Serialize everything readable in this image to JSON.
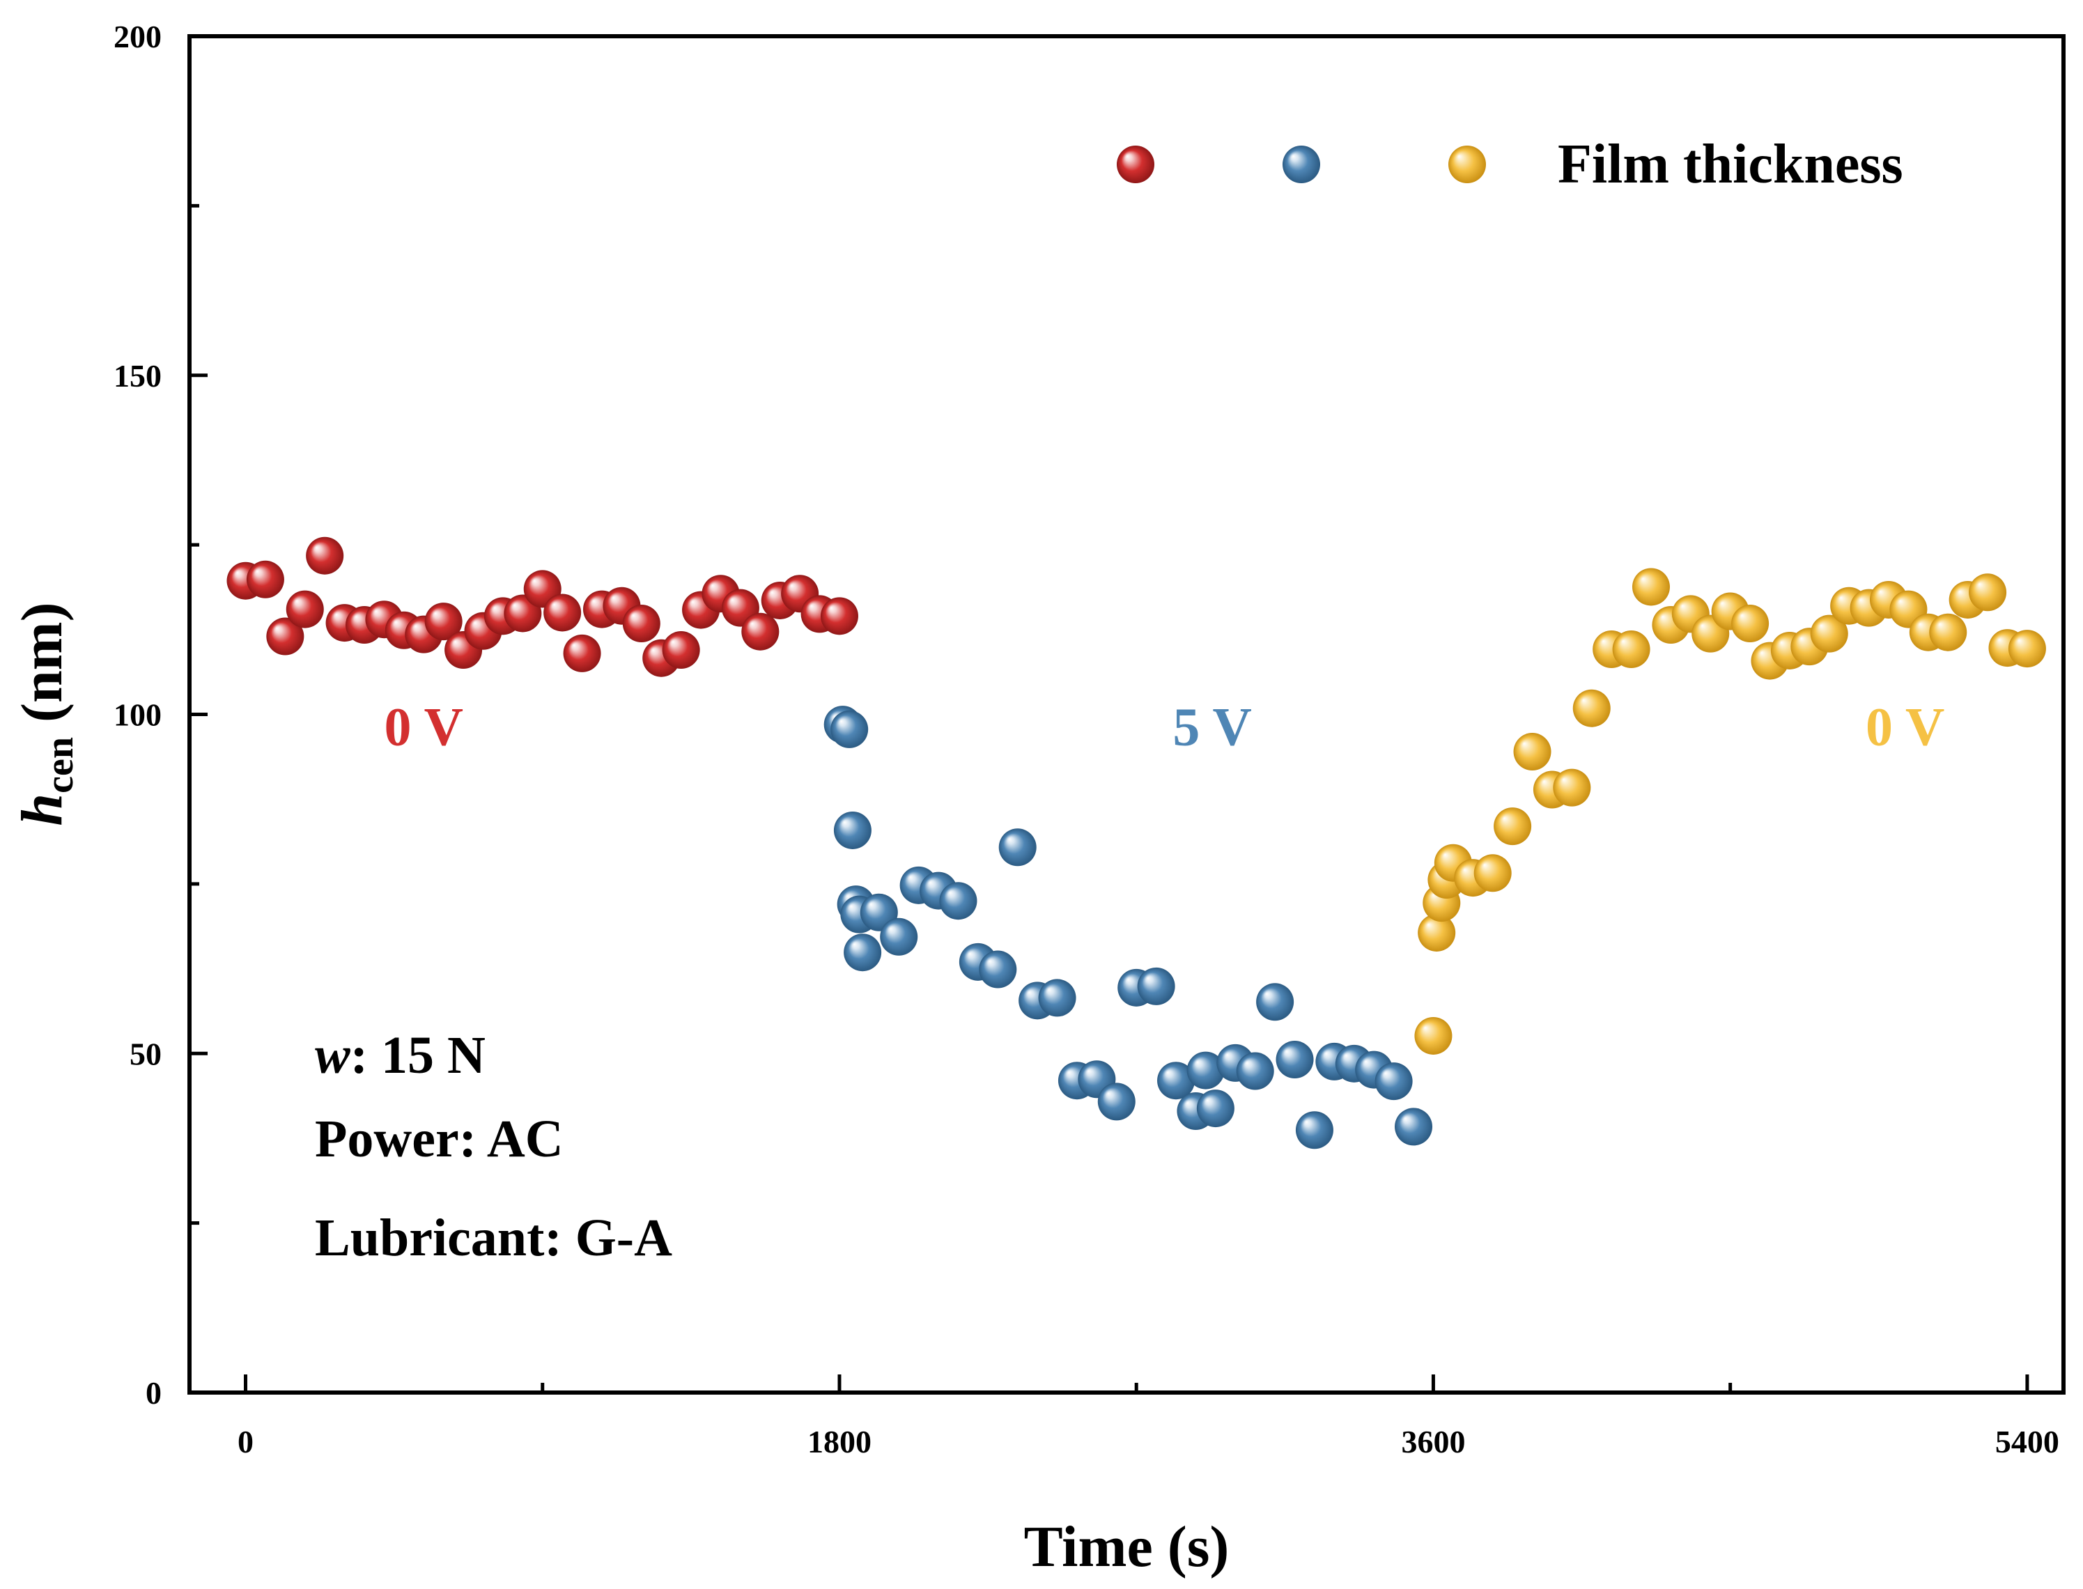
{
  "chart_data": {
    "type": "scatter",
    "title": "",
    "xlabel": "Time (s)",
    "ylabel": {
      "main": "h",
      "sub": "cen",
      "unit": " (nm)"
    },
    "xlim": [
      -170,
      5510
    ],
    "ylim": [
      0,
      200
    ],
    "x_ticks": [
      0,
      1800,
      3600,
      5400
    ],
    "x_tick_labels": [
      "0",
      "1800",
      "3600",
      "5400"
    ],
    "x_minor_ticks": [
      900,
      2700,
      4500
    ],
    "y_ticks": [
      0,
      50,
      100,
      150,
      200
    ],
    "y_tick_labels": [
      "0",
      "50",
      "100",
      "150",
      "200"
    ],
    "y_minor_ticks": [
      25,
      75,
      125,
      175
    ],
    "grid": false,
    "legend": {
      "position": "top-right",
      "label": "Film thickness"
    },
    "series": [
      {
        "name": "0 V",
        "color": "#d32f2f",
        "points": [
          [
            0,
            119.7
          ],
          [
            60,
            119.9
          ],
          [
            120,
            111.5
          ],
          [
            180,
            115.5
          ],
          [
            240,
            123.4
          ],
          [
            300,
            113.5
          ],
          [
            360,
            113.2
          ],
          [
            420,
            114.0
          ],
          [
            480,
            112.4
          ],
          [
            540,
            111.8
          ],
          [
            600,
            113.7
          ],
          [
            660,
            109.5
          ],
          [
            720,
            112.3
          ],
          [
            780,
            114.5
          ],
          [
            840,
            114.9
          ],
          [
            900,
            118.5
          ],
          [
            960,
            115.0
          ],
          [
            1020,
            109.0
          ],
          [
            1080,
            115.5
          ],
          [
            1140,
            116.0
          ],
          [
            1200,
            113.4
          ],
          [
            1260,
            108.3
          ],
          [
            1320,
            109.5
          ],
          [
            1380,
            115.4
          ],
          [
            1440,
            117.8
          ],
          [
            1500,
            115.7
          ],
          [
            1560,
            112.2
          ],
          [
            1620,
            116.8
          ],
          [
            1680,
            117.8
          ],
          [
            1740,
            114.8
          ],
          [
            1800,
            114.5
          ]
        ]
      },
      {
        "name": "5 V",
        "color": "#4f86b5",
        "points": [
          [
            1810,
            98.5
          ],
          [
            1830,
            97.8
          ],
          [
            1840,
            82.9
          ],
          [
            1850,
            72.0
          ],
          [
            1860,
            70.5
          ],
          [
            1870,
            64.9
          ],
          [
            1920,
            70.8
          ],
          [
            1980,
            67.2
          ],
          [
            2040,
            74.8
          ],
          [
            2100,
            74.0
          ],
          [
            2160,
            72.5
          ],
          [
            2220,
            63.5
          ],
          [
            2280,
            62.4
          ],
          [
            2340,
            80.4
          ],
          [
            2400,
            57.8
          ],
          [
            2460,
            58.2
          ],
          [
            2520,
            46.0
          ],
          [
            2580,
            46.2
          ],
          [
            2640,
            42.9
          ],
          [
            2700,
            59.7
          ],
          [
            2760,
            59.9
          ],
          [
            2820,
            46.0
          ],
          [
            2880,
            41.5
          ],
          [
            2910,
            47.5
          ],
          [
            2940,
            41.9
          ],
          [
            3000,
            48.6
          ],
          [
            3060,
            47.4
          ],
          [
            3120,
            57.6
          ],
          [
            3180,
            49.1
          ],
          [
            3240,
            38.7
          ],
          [
            3300,
            48.8
          ],
          [
            3360,
            48.5
          ],
          [
            3420,
            47.6
          ],
          [
            3480,
            45.9
          ],
          [
            3540,
            39.2
          ]
        ]
      },
      {
        "name": "0 V",
        "color": "#f5c144",
        "points": [
          [
            3600,
            52.6
          ],
          [
            3610,
            67.8
          ],
          [
            3625,
            72.2
          ],
          [
            3640,
            75.6
          ],
          [
            3660,
            78.1
          ],
          [
            3720,
            75.9
          ],
          [
            3780,
            76.6
          ],
          [
            3840,
            83.5
          ],
          [
            3900,
            94.5
          ],
          [
            3960,
            88.9
          ],
          [
            4020,
            89.2
          ],
          [
            4080,
            100.9
          ],
          [
            4140,
            109.6
          ],
          [
            4200,
            109.6
          ],
          [
            4260,
            118.8
          ],
          [
            4320,
            113.2
          ],
          [
            4380,
            114.8
          ],
          [
            4440,
            111.9
          ],
          [
            4500,
            115.2
          ],
          [
            4560,
            113.4
          ],
          [
            4620,
            107.9
          ],
          [
            4680,
            109.4
          ],
          [
            4740,
            110.0
          ],
          [
            4800,
            111.9
          ],
          [
            4860,
            116.0
          ],
          [
            4920,
            115.7
          ],
          [
            4980,
            116.9
          ],
          [
            5040,
            115.5
          ],
          [
            5100,
            112.1
          ],
          [
            5160,
            112.1
          ],
          [
            5220,
            116.9
          ],
          [
            5280,
            118.0
          ],
          [
            5340,
            109.8
          ],
          [
            5400,
            109.7
          ]
        ]
      }
    ],
    "annotations": [
      {
        "text": "0 V",
        "x": 540,
        "y": 95.5,
        "color": "#d32f2f"
      },
      {
        "text": "5 V",
        "x": 2930,
        "y": 95.5,
        "color": "#4f86b5"
      },
      {
        "text": "0 V",
        "x": 5030,
        "y": 95.5,
        "color": "#f5c144"
      }
    ]
  },
  "conditions": {
    "load_label": "w",
    "load_value": ": 15 N",
    "power": "Power: AC",
    "lubricant": "Lubricant: G-A"
  }
}
